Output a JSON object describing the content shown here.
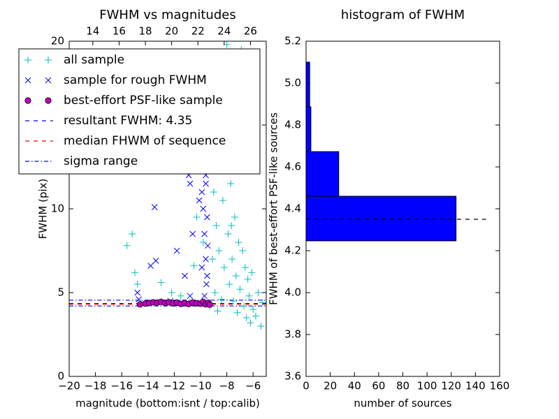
{
  "chart_data": [
    {
      "type": "scatter",
      "title": "FWHM vs magnitudes",
      "xlabel": "magnitude (bottom:isnt / top:calib)",
      "ylabel": "FWHM (pix)",
      "xlim": [
        -20,
        -5
      ],
      "xticks": [
        {
          "value": -20,
          "label": "−20"
        },
        {
          "value": -18,
          "label": "−18"
        },
        {
          "value": -16,
          "label": "−16"
        },
        {
          "value": -14,
          "label": "−14"
        },
        {
          "value": -12,
          "label": "−12"
        },
        {
          "value": -10,
          "label": "−10"
        },
        {
          "value": -8,
          "label": "−8"
        },
        {
          "value": -6,
          "label": "−6"
        }
      ],
      "x2lim": [
        12.2,
        27.2
      ],
      "x2ticks": [
        14,
        16,
        18,
        20,
        22,
        24,
        26
      ],
      "ylim": [
        0,
        20
      ],
      "yticks": [
        0,
        5,
        10,
        15,
        20
      ],
      "legend": "upper left",
      "series": [
        {
          "name": "all sample",
          "color": "#00bfbf",
          "marker": "+",
          "x": [
            -15.6,
            -15.2,
            -15.0,
            -14.8,
            -13.0,
            -12.2,
            -11.5,
            -10.5,
            -10.3,
            -9.8,
            -9.5,
            -9.2,
            -9.0,
            -8.8,
            -8.6,
            -8.5,
            -8.3,
            -8.2,
            -8.1,
            -8.0,
            -7.9,
            -7.8,
            -7.7,
            -7.6,
            -7.5,
            -7.4,
            -7.3,
            -7.2,
            -7.1,
            -7.0,
            -6.9,
            -6.8,
            -6.7,
            -6.6,
            -6.5,
            -6.4,
            -6.3,
            -6.2,
            -6.1,
            -6.0,
            -5.8,
            -5.6,
            -5.4,
            -5.3,
            -9.3,
            -8.9,
            -8.7,
            -8.4,
            -7.95,
            -8.15,
            -7.65,
            -9.1,
            -8.75
          ],
          "values": [
            7.8,
            8.5,
            6.2,
            5.5,
            5.6,
            5.0,
            4.8,
            6.6,
            9.5,
            8.0,
            12.5,
            14.0,
            11.0,
            9.0,
            7.5,
            13.5,
            10.5,
            6.5,
            16.0,
            19.8,
            8.5,
            5.5,
            11.5,
            7.0,
            4.5,
            9.5,
            6.0,
            3.8,
            8.0,
            5.2,
            19.5,
            7.5,
            4.2,
            6.5,
            3.5,
            5.8,
            4.8,
            3.2,
            6.2,
            4.0,
            3.6,
            5.0,
            3.0,
            4.4,
            4.2,
            5.0,
            3.9,
            4.6,
            12.5,
            14.5,
            9.0,
            7.0,
            17.0
          ]
        },
        {
          "name": "sample for rough FWHM",
          "color": "#0000ff",
          "marker": "x",
          "x": [
            -14.8,
            -14.7,
            -13.8,
            -13.4,
            -13.5,
            -12.3,
            -11.8,
            -11.2,
            -10.8,
            -10.6,
            -10.5,
            -10.3,
            -10.9,
            -10.8,
            -9.9,
            -9.8,
            -9.7,
            -9.6,
            -9.5,
            -9.5,
            -9.7,
            -9.6,
            -9.5,
            -9.4,
            -9.8,
            -9.6,
            -9.55,
            -9.45,
            -10.1,
            -10.2,
            -9.9,
            -9.7
          ],
          "values": [
            5.0,
            4.6,
            6.6,
            6.9,
            10.1,
            4.5,
            7.5,
            6.0,
            4.8,
            8.5,
            15.0,
            14.5,
            12.0,
            11.5,
            11.0,
            10.0,
            8.5,
            7.0,
            6.0,
            9.5,
            13.0,
            12.0,
            16.0,
            14.5,
            12.5,
            11.5,
            5.5,
            7.8,
            10.5,
            13.2,
            6.5,
            4.8
          ]
        },
        {
          "name": "best-effort PSF-like sample",
          "color": "#bf00bf",
          "marker": "o",
          "x": [
            -14.6,
            -14.2,
            -13.9,
            -13.6,
            -13.3,
            -13.0,
            -12.7,
            -12.4,
            -12.1,
            -11.8,
            -11.5,
            -11.2,
            -10.9,
            -10.6,
            -10.3,
            -10.0,
            -9.8,
            -9.6,
            -9.4,
            -9.3
          ],
          "values": [
            4.3,
            4.35,
            4.38,
            4.42,
            4.4,
            4.45,
            4.38,
            4.42,
            4.36,
            4.4,
            4.33,
            4.38,
            4.32,
            4.41,
            4.36,
            4.34,
            4.45,
            4.3,
            4.39,
            4.28
          ]
        }
      ],
      "lines": [
        {
          "name": "resultant FWHM: 4.35",
          "color": "#0000ff",
          "style": "dashed",
          "values": [
            4.35
          ]
        },
        {
          "name": "median FHWM of sequence",
          "color": "#ff0000",
          "style": "dashed",
          "values": [
            4.3
          ]
        },
        {
          "name": "sigma range",
          "color": "#0000ff",
          "style": "dashdot",
          "values": [
            4.2,
            4.55
          ]
        }
      ]
    },
    {
      "type": "histogram",
      "orientation": "horizontal",
      "title": "histogram of FWHM",
      "xlabel": "number of sources",
      "ylabel": "FWHM of best-effort PSF-like sources",
      "xlim": [
        0,
        160
      ],
      "xticks": [
        0,
        20,
        40,
        60,
        80,
        100,
        120,
        140,
        160
      ],
      "ylim": [
        3.6,
        5.2
      ],
      "yticks": [
        3.6,
        3.8,
        {
          "value": 4.0,
          "label": "4.0"
        },
        4.2,
        4.4,
        4.6,
        4.8,
        {
          "value": 5.0,
          "label": "5.0"
        },
        5.2
      ],
      "bins": [
        4.247,
        4.46,
        4.673,
        4.887,
        5.1
      ],
      "values": [
        124,
        27,
        4,
        3
      ],
      "color": "#0000ff",
      "hline": {
        "value": 4.35,
        "color": "#000000",
        "style": "dashed"
      }
    }
  ]
}
